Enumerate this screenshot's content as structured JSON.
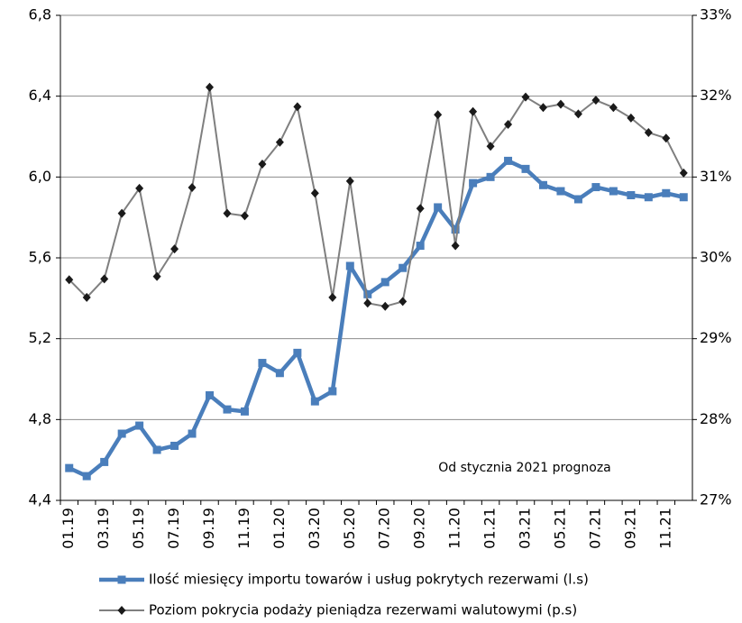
{
  "chart_data": {
    "type": "line",
    "categories": [
      "01.19",
      null,
      "03.19",
      null,
      "05.19",
      null,
      "07.19",
      null,
      "09.19",
      null,
      "11.19",
      null,
      "01.20",
      null,
      "03.20",
      null,
      "05.20",
      null,
      "07.20",
      null,
      "09.20",
      null,
      "11.20",
      null,
      "01.21",
      null,
      "03.21",
      null,
      "05.21",
      null,
      "07.21",
      null,
      "09.21",
      null,
      "11.21",
      null
    ],
    "series": [
      {
        "name": "Ilość miesięcy importu towarów i usług pokrytych rezerwami (l.s)",
        "color": "#4a7ebb",
        "marker": "square",
        "values": [
          4.56,
          4.52,
          4.59,
          4.73,
          4.77,
          4.65,
          4.67,
          4.73,
          4.92,
          4.85,
          4.84,
          5.08,
          5.03,
          5.13,
          4.89,
          4.94,
          5.56,
          5.42,
          5.48,
          5.55,
          5.66,
          5.85,
          5.74,
          5.97,
          6.0,
          6.08,
          6.04,
          5.96,
          5.93,
          5.89,
          5.95,
          5.93,
          5.91,
          5.9,
          5.92,
          5.9
        ]
      },
      {
        "name": "Poziom pokrycia podaży pieniądza rezerwami walutowymi (p.s)",
        "color": "#7f7f7f",
        "marker": "diamond",
        "marker_color": "#1a1a1a",
        "axis": "y2",
        "values": [
          29.73,
          29.51,
          29.74,
          30.55,
          30.86,
          29.77,
          30.11,
          30.87,
          32.11,
          30.55,
          30.52,
          31.16,
          31.43,
          31.87,
          30.8,
          29.51,
          30.95,
          29.44,
          29.4,
          29.46,
          30.61,
          31.77,
          30.15,
          31.81,
          31.38,
          31.65,
          31.99,
          31.86,
          31.9,
          31.78,
          31.95,
          31.86,
          31.73,
          31.55,
          31.48,
          31.05
        ]
      }
    ],
    "ylim": [
      4.4,
      6.8
    ],
    "yticks": [
      {
        "value": 4.4,
        "label": "4,4"
      },
      {
        "value": 4.8,
        "label": "4,8"
      },
      {
        "value": 5.2,
        "label": "5,2"
      },
      {
        "value": 5.6,
        "label": "5,6"
      },
      {
        "value": 6.0,
        "label": "6,0"
      },
      {
        "value": 6.4,
        "label": "6,4"
      },
      {
        "value": 6.8,
        "label": "6,8"
      }
    ],
    "y2lim": [
      27,
      33
    ],
    "y2ticks": [
      {
        "value": 27,
        "label": "27%"
      },
      {
        "value": 28,
        "label": "28%"
      },
      {
        "value": 29,
        "label": "29%"
      },
      {
        "value": 30,
        "label": "30%"
      },
      {
        "value": 31,
        "label": "31%"
      },
      {
        "value": 32,
        "label": "32%"
      },
      {
        "value": 33,
        "label": "33%"
      }
    ],
    "grid": true,
    "annotation": "Od stycznia 2021 prognoza",
    "legend": "bottom"
  }
}
